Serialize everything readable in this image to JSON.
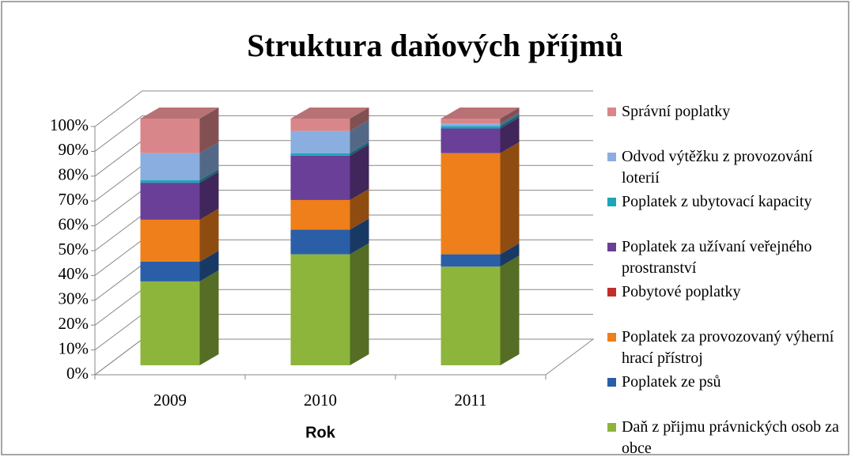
{
  "chart_data": {
    "type": "bar3d_stacked",
    "title": "Struktura daňových příjmů",
    "x_label": "Rok",
    "categories": [
      "2009",
      "2010",
      "2011"
    ],
    "ylim": [
      0,
      100
    ],
    "yticks": [
      {
        "value": 0,
        "label": "0%"
      },
      {
        "value": 10,
        "label": "10%"
      },
      {
        "value": 20,
        "label": "20%"
      },
      {
        "value": 30,
        "label": "30%"
      },
      {
        "value": 40,
        "label": "40%"
      },
      {
        "value": 50,
        "label": "50%"
      },
      {
        "value": 60,
        "label": "60%"
      },
      {
        "value": 70,
        "label": "70%"
      },
      {
        "value": 80,
        "label": "80%"
      },
      {
        "value": 90,
        "label": "90%"
      },
      {
        "value": 100,
        "label": "100%"
      }
    ],
    "grid": true,
    "legend_position": "right",
    "series": [
      {
        "name": "Daň z přijmu právnických osob za obce",
        "color": "#8db53c",
        "values": [
          34,
          45,
          40
        ]
      },
      {
        "name": "Poplatek ze psů",
        "color": "#2a5fa8",
        "values": [
          8,
          10,
          5
        ]
      },
      {
        "name": "Poplatek za provozovaný výherní hrací přístroj",
        "color": "#ef7f1a",
        "values": [
          17,
          12,
          41
        ]
      },
      {
        "name": "Pobytové poplatky",
        "color": "#c0302a",
        "values": [
          0,
          0,
          0
        ]
      },
      {
        "name": "Poplatek za užívaní veřejného prostranství",
        "color": "#6a3f98",
        "values": [
          15,
          18,
          10
        ]
      },
      {
        "name": "Poplatek z ubytovací kapacity",
        "color": "#1fa5b8",
        "values": [
          1,
          1,
          1
        ]
      },
      {
        "name": "Odvod výtěžku z provozování loterií",
        "color": "#8aaee0",
        "values": [
          11,
          9,
          1
        ]
      },
      {
        "name": "Správní poplatky",
        "color": "#d9868a",
        "values": [
          14,
          5,
          2
        ]
      }
    ]
  }
}
